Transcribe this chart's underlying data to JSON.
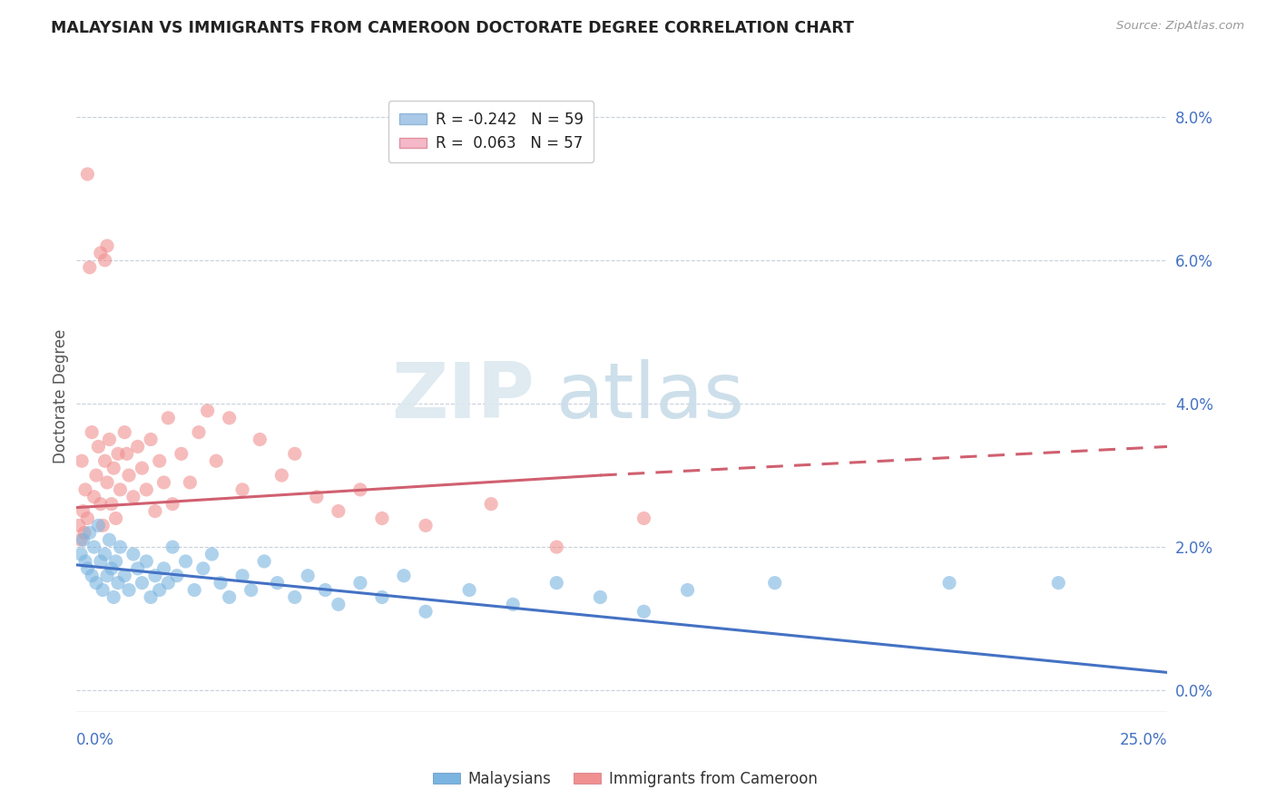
{
  "title": "MALAYSIAN VS IMMIGRANTS FROM CAMEROON DOCTORATE DEGREE CORRELATION CHART",
  "source": "Source: ZipAtlas.com",
  "ylabel": "Doctorate Degree",
  "right_yticks": [
    "0.0%",
    "2.0%",
    "4.0%",
    "6.0%",
    "8.0%"
  ],
  "right_yvals": [
    0.0,
    2.0,
    4.0,
    6.0,
    8.0
  ],
  "xmin": 0.0,
  "xmax": 25.0,
  "ymin": -0.3,
  "ymax": 8.5,
  "legend_entries": [
    {
      "label": "R = -0.242   N = 59",
      "color": "#aac8e8"
    },
    {
      "label": "R =  0.063   N = 57",
      "color": "#f4b8c8"
    }
  ],
  "malaysian_color": "#7ab4e0",
  "cameroon_color": "#f09090",
  "malaysian_trend_color": "#4472c4",
  "cameroon_trend_color": "#d06070",
  "watermark_zip": "ZIP",
  "watermark_atlas": "atlas",
  "malaysian_trend": [
    0.0,
    25.0,
    1.75,
    0.25
  ],
  "cameroon_trend_solid": [
    0.0,
    12.0,
    2.55,
    3.0
  ],
  "cameroon_trend_dashed": [
    12.0,
    25.0,
    3.0,
    3.4
  ],
  "malaysian_scatter": [
    [
      0.1,
      1.9
    ],
    [
      0.15,
      2.1
    ],
    [
      0.2,
      1.8
    ],
    [
      0.25,
      1.7
    ],
    [
      0.3,
      2.2
    ],
    [
      0.35,
      1.6
    ],
    [
      0.4,
      2.0
    ],
    [
      0.45,
      1.5
    ],
    [
      0.5,
      2.3
    ],
    [
      0.55,
      1.8
    ],
    [
      0.6,
      1.4
    ],
    [
      0.65,
      1.9
    ],
    [
      0.7,
      1.6
    ],
    [
      0.75,
      2.1
    ],
    [
      0.8,
      1.7
    ],
    [
      0.85,
      1.3
    ],
    [
      0.9,
      1.8
    ],
    [
      0.95,
      1.5
    ],
    [
      1.0,
      2.0
    ],
    [
      1.1,
      1.6
    ],
    [
      1.2,
      1.4
    ],
    [
      1.3,
      1.9
    ],
    [
      1.4,
      1.7
    ],
    [
      1.5,
      1.5
    ],
    [
      1.6,
      1.8
    ],
    [
      1.7,
      1.3
    ],
    [
      1.8,
      1.6
    ],
    [
      1.9,
      1.4
    ],
    [
      2.0,
      1.7
    ],
    [
      2.1,
      1.5
    ],
    [
      2.2,
      2.0
    ],
    [
      2.3,
      1.6
    ],
    [
      2.5,
      1.8
    ],
    [
      2.7,
      1.4
    ],
    [
      2.9,
      1.7
    ],
    [
      3.1,
      1.9
    ],
    [
      3.3,
      1.5
    ],
    [
      3.5,
      1.3
    ],
    [
      3.8,
      1.6
    ],
    [
      4.0,
      1.4
    ],
    [
      4.3,
      1.8
    ],
    [
      4.6,
      1.5
    ],
    [
      5.0,
      1.3
    ],
    [
      5.3,
      1.6
    ],
    [
      5.7,
      1.4
    ],
    [
      6.0,
      1.2
    ],
    [
      6.5,
      1.5
    ],
    [
      7.0,
      1.3
    ],
    [
      7.5,
      1.6
    ],
    [
      8.0,
      1.1
    ],
    [
      9.0,
      1.4
    ],
    [
      10.0,
      1.2
    ],
    [
      11.0,
      1.5
    ],
    [
      12.0,
      1.3
    ],
    [
      13.0,
      1.1
    ],
    [
      14.0,
      1.4
    ],
    [
      16.0,
      1.5
    ],
    [
      20.0,
      1.5
    ],
    [
      22.5,
      1.5
    ]
  ],
  "cameroon_scatter": [
    [
      0.05,
      2.3
    ],
    [
      0.1,
      2.1
    ],
    [
      0.12,
      3.2
    ],
    [
      0.15,
      2.5
    ],
    [
      0.18,
      2.2
    ],
    [
      0.2,
      2.8
    ],
    [
      0.25,
      2.4
    ],
    [
      0.3,
      5.9
    ],
    [
      0.35,
      3.6
    ],
    [
      0.4,
      2.7
    ],
    [
      0.45,
      3.0
    ],
    [
      0.5,
      3.4
    ],
    [
      0.55,
      2.6
    ],
    [
      0.6,
      2.3
    ],
    [
      0.65,
      3.2
    ],
    [
      0.7,
      2.9
    ],
    [
      0.75,
      3.5
    ],
    [
      0.8,
      2.6
    ],
    [
      0.85,
      3.1
    ],
    [
      0.9,
      2.4
    ],
    [
      0.95,
      3.3
    ],
    [
      1.0,
      2.8
    ],
    [
      1.1,
      3.6
    ],
    [
      1.15,
      3.3
    ],
    [
      1.2,
      3.0
    ],
    [
      1.3,
      2.7
    ],
    [
      1.4,
      3.4
    ],
    [
      1.5,
      3.1
    ],
    [
      1.6,
      2.8
    ],
    [
      1.7,
      3.5
    ],
    [
      1.8,
      2.5
    ],
    [
      1.9,
      3.2
    ],
    [
      2.0,
      2.9
    ],
    [
      2.1,
      3.8
    ],
    [
      2.2,
      2.6
    ],
    [
      2.4,
      3.3
    ],
    [
      2.6,
      2.9
    ],
    [
      2.8,
      3.6
    ],
    [
      3.0,
      3.9
    ],
    [
      3.2,
      3.2
    ],
    [
      3.5,
      3.8
    ],
    [
      3.8,
      2.8
    ],
    [
      4.2,
      3.5
    ],
    [
      4.7,
      3.0
    ],
    [
      5.0,
      3.3
    ],
    [
      5.5,
      2.7
    ],
    [
      6.0,
      2.5
    ],
    [
      6.5,
      2.8
    ],
    [
      7.0,
      2.4
    ],
    [
      8.0,
      2.3
    ],
    [
      9.5,
      2.6
    ],
    [
      11.0,
      2.0
    ],
    [
      13.0,
      2.4
    ],
    [
      0.25,
      7.2
    ],
    [
      0.55,
      6.1
    ],
    [
      0.65,
      6.0
    ],
    [
      0.7,
      6.2
    ]
  ]
}
